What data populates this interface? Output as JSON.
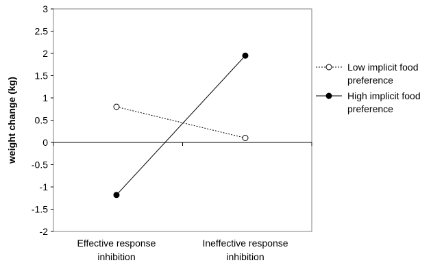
{
  "chart_data": {
    "type": "line",
    "title": "",
    "xlabel": "",
    "ylabel": "weight change (kg)",
    "ylim": [
      -2,
      3
    ],
    "yticks": [
      "3",
      "2.5",
      "2",
      "1.5",
      "1",
      "0.5",
      "0",
      "-0.5",
      "-1",
      "-1.5",
      "-2"
    ],
    "ytick_values": [
      3,
      2.5,
      2,
      1.5,
      1,
      0.5,
      0,
      -0.5,
      -1,
      -1.5,
      -2
    ],
    "categories": [
      [
        "Effective response",
        "inhibition"
      ],
      [
        "Ineffective response",
        "inhibition"
      ]
    ],
    "series": [
      {
        "name_lines": [
          "Low implicit food",
          "preference"
        ],
        "values": [
          0.8,
          0.1
        ],
        "line_style": "dotted",
        "marker": "open-circle"
      },
      {
        "name_lines": [
          "High implicit food",
          "preference"
        ],
        "values": [
          -1.18,
          1.95
        ],
        "line_style": "solid",
        "marker": "filled-circle"
      }
    ],
    "grid": false,
    "legend_position": "right"
  }
}
